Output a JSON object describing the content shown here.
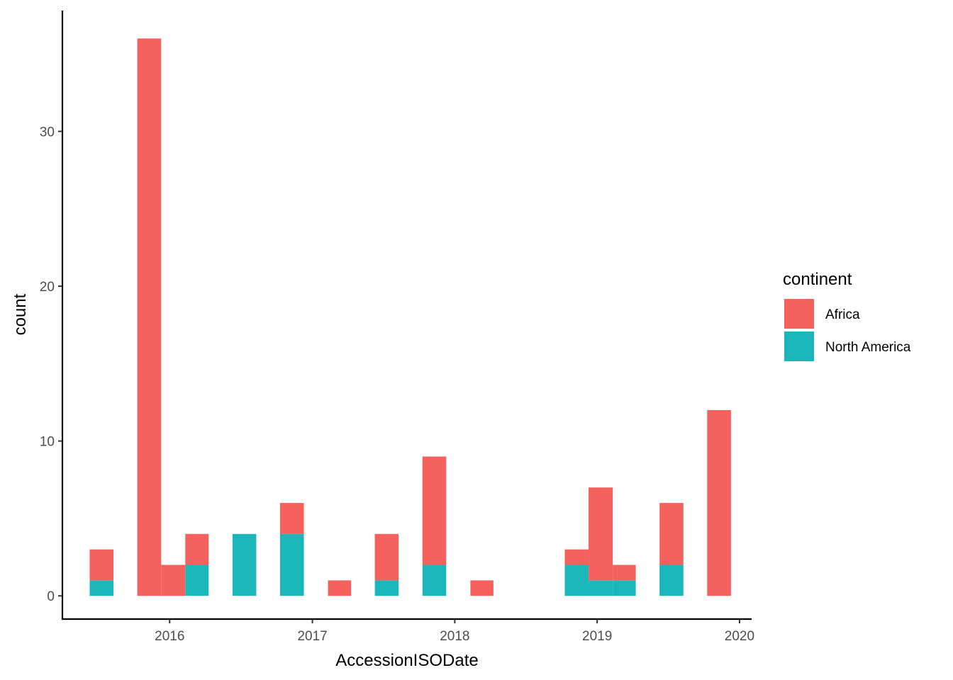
{
  "chart_data": {
    "type": "bar",
    "stacked": true,
    "xlabel": "AccessionISODate",
    "ylabel": "count",
    "x_ticks": [
      "2016",
      "2017",
      "2018",
      "2019",
      "2020"
    ],
    "y_ticks": [
      0,
      10,
      20,
      30
    ],
    "xlim": [
      "2015-04-01",
      "2020-02-01"
    ],
    "ylim": [
      -1.5,
      37.8
    ],
    "grid": false,
    "legend": {
      "title": "continent",
      "placement": "right"
    },
    "bins": [
      {
        "start": "2015-06-10",
        "end": "2015-08-10"
      },
      {
        "start": "2015-10-10",
        "end": "2015-12-10"
      },
      {
        "start": "2015-12-10",
        "end": "2016-02-10"
      },
      {
        "start": "2016-02-10",
        "end": "2016-04-10"
      },
      {
        "start": "2016-06-10",
        "end": "2016-08-10"
      },
      {
        "start": "2016-10-10",
        "end": "2016-12-10"
      },
      {
        "start": "2017-02-10",
        "end": "2017-04-10"
      },
      {
        "start": "2017-06-10",
        "end": "2017-08-10"
      },
      {
        "start": "2017-10-10",
        "end": "2017-12-10"
      },
      {
        "start": "2018-02-10",
        "end": "2018-04-10"
      },
      {
        "start": "2018-10-10",
        "end": "2018-12-10"
      },
      {
        "start": "2018-12-10",
        "end": "2019-02-10"
      },
      {
        "start": "2019-02-10",
        "end": "2019-04-10"
      },
      {
        "start": "2019-06-10",
        "end": "2019-08-10"
      },
      {
        "start": "2019-10-10",
        "end": "2019-12-10"
      }
    ],
    "series": [
      {
        "name": "North America",
        "color": "#1ab6b9",
        "values": [
          1,
          0,
          0,
          2,
          4,
          4,
          0,
          1,
          2,
          0,
          2,
          1,
          1,
          2,
          0
        ]
      },
      {
        "name": "Africa",
        "color": "#f5615c",
        "values": [
          2,
          36,
          2,
          2,
          0,
          2,
          1,
          3,
          7,
          1,
          1,
          6,
          1,
          4,
          12
        ]
      }
    ]
  }
}
